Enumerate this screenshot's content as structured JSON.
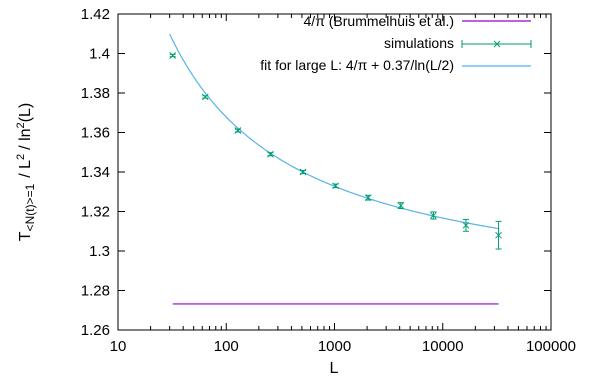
{
  "chart_data": {
    "type": "line",
    "xlabel": "L",
    "ylabel_parts": {
      "T": "T",
      "subscript": "<N(t)>=1",
      "mid": "/ L",
      "sup1": "2",
      "mid2": "/ ln",
      "sup2": "2",
      "tail": "(L)"
    },
    "x_scale": "log",
    "xlim": [
      10,
      100000
    ],
    "ylim": [
      1.26,
      1.42
    ],
    "x_ticks": [
      10,
      100,
      1000,
      10000,
      100000
    ],
    "x_tick_labels": [
      "10",
      "100",
      "1000",
      "10000",
      "100000"
    ],
    "y_ticks": [
      1.26,
      1.28,
      1.3,
      1.32,
      1.34,
      1.36,
      1.38,
      1.4,
      1.42
    ],
    "y_tick_labels": [
      "1.26",
      "1.28",
      "1.3",
      "1.32",
      "1.34",
      "1.36",
      "1.38",
      "1.4",
      "1.42"
    ],
    "grid": false,
    "legend_position": "top-right",
    "series": [
      {
        "name": "4/π  (Brummelhuis et al.)",
        "kind": "line",
        "color": "#9400d3",
        "x": [
          32,
          32768
        ],
        "y": [
          1.2732,
          1.2732
        ]
      },
      {
        "name": "simulations",
        "kind": "points_with_errorbars",
        "color": "#009e73",
        "x": [
          32,
          64,
          128,
          256,
          512,
          1024,
          2048,
          4096,
          8192,
          16384,
          32768
        ],
        "y": [
          1.399,
          1.378,
          1.361,
          1.349,
          1.34,
          1.333,
          1.327,
          1.323,
          1.318,
          1.313,
          1.308
        ],
        "yerr": [
          0.0006,
          0.0006,
          0.0007,
          0.0008,
          0.0008,
          0.0009,
          0.0012,
          0.0015,
          0.0018,
          0.003,
          0.007
        ]
      },
      {
        "name": "fit for large L:  4/π + 0.37/ln(L/2)",
        "kind": "curve",
        "color": "#56b4e9",
        "formula": "4/pi + 0.37/ln(L/2)",
        "x_range": [
          30,
          32768
        ]
      }
    ]
  }
}
